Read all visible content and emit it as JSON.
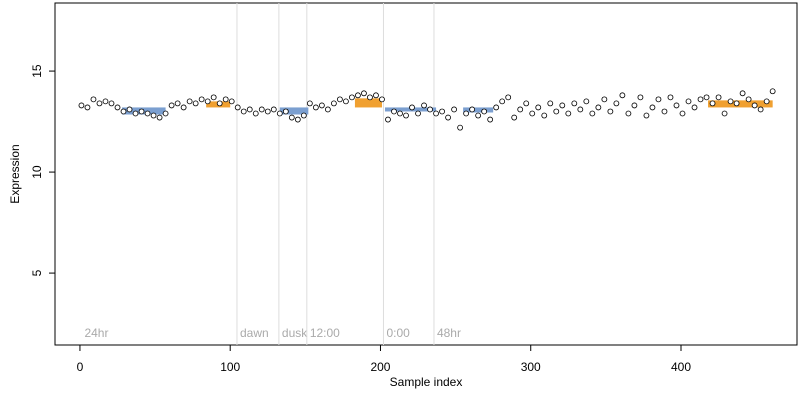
{
  "chart_data": {
    "type": "scatter",
    "x_label": "Sample index",
    "y_label": "Expression",
    "xlim": [
      -16.6,
      477.2
    ],
    "ylim": [
      1.44,
      18.37
    ],
    "xticks": [
      0,
      100,
      200,
      300,
      400
    ],
    "yticks": [
      5,
      10,
      15
    ],
    "series": [
      {
        "color": "#ffffff",
        "x": [
          1,
          5,
          9,
          13,
          17,
          21,
          25,
          29,
          33,
          37,
          41,
          45,
          49,
          53,
          57,
          61,
          65,
          69,
          73,
          77,
          81,
          85,
          89,
          93,
          97,
          101,
          105,
          109,
          113,
          117,
          121,
          125,
          129,
          133,
          137,
          141,
          145,
          149,
          153,
          157,
          161,
          165,
          169,
          173,
          177,
          181,
          185,
          189,
          193,
          197,
          201,
          205,
          209,
          213,
          217,
          221,
          225,
          229,
          233,
          237,
          241,
          245,
          249,
          253,
          257,
          261,
          265,
          269,
          273,
          277,
          281,
          285,
          289,
          293,
          297,
          301,
          305,
          309,
          313,
          317,
          321,
          325,
          329,
          333,
          337,
          341,
          345,
          349,
          353,
          357,
          361,
          365,
          369,
          373,
          377,
          381,
          385,
          389,
          393,
          397,
          401,
          405,
          409,
          413,
          417,
          421,
          425,
          429,
          433,
          437,
          441,
          445,
          449,
          453,
          457,
          461
        ],
        "values": [
          13.3,
          13.2,
          13.6,
          13.4,
          13.5,
          13.4,
          13.2,
          13.0,
          13.1,
          12.9,
          13.0,
          12.9,
          12.8,
          12.7,
          12.9,
          13.3,
          13.4,
          13.2,
          13.5,
          13.4,
          13.6,
          13.5,
          13.7,
          13.4,
          13.6,
          13.5,
          13.2,
          13.0,
          13.1,
          12.9,
          13.1,
          13.0,
          13.1,
          12.9,
          13.0,
          12.7,
          12.6,
          12.8,
          13.4,
          13.2,
          13.3,
          13.1,
          13.4,
          13.6,
          13.5,
          13.7,
          13.8,
          13.9,
          13.7,
          13.8,
          13.6,
          12.6,
          13.0,
          12.9,
          12.8,
          13.2,
          12.9,
          13.3,
          13.1,
          12.9,
          13.0,
          12.7,
          13.1,
          12.2,
          12.9,
          13.1,
          12.8,
          13.0,
          12.6,
          13.2,
          13.5,
          13.7,
          12.7,
          13.1,
          13.4,
          12.9,
          13.2,
          12.8,
          13.4,
          13.0,
          13.3,
          12.9,
          13.4,
          13.1,
          13.5,
          12.9,
          13.2,
          13.6,
          13.0,
          13.4,
          13.8,
          12.9,
          13.3,
          13.7,
          12.8,
          13.2,
          13.6,
          13.0,
          13.7,
          13.3,
          12.9,
          13.5,
          13.2,
          13.6,
          13.7,
          13.4,
          13.7,
          12.9,
          13.5,
          13.4,
          13.9,
          13.6,
          13.3,
          13.1,
          13.5,
          14.0
        ]
      }
    ],
    "highlights": [
      {
        "x0": 28,
        "x1": 57,
        "y0": 12.85,
        "y1": 13.2,
        "color": "#7b9fd0"
      },
      {
        "x0": 84,
        "x1": 100,
        "y0": 13.2,
        "y1": 13.5,
        "color": "#f0a030"
      },
      {
        "x0": 133,
        "x1": 152,
        "y0": 12.85,
        "y1": 13.2,
        "color": "#7b9fd0"
      },
      {
        "x0": 183,
        "x1": 201,
        "y0": 13.2,
        "y1": 13.65,
        "color": "#f0a030"
      },
      {
        "x0": 203,
        "x1": 237,
        "y0": 13.0,
        "y1": 13.2,
        "color": "#7b9fd0"
      },
      {
        "x0": 255,
        "x1": 275,
        "y0": 12.95,
        "y1": 13.2,
        "color": "#7b9fd0"
      },
      {
        "x0": 418,
        "x1": 461,
        "y0": 13.2,
        "y1": 13.55,
        "color": "#f0a030"
      }
    ],
    "vlines": [
      {
        "x": 1,
        "label": "24hr"
      },
      {
        "x": 104.5,
        "label": "dawn"
      },
      {
        "x": 132.4,
        "label": "dusk"
      },
      {
        "x": 151,
        "label": "12:00"
      },
      {
        "x": 202,
        "label": "0:00"
      },
      {
        "x": 235.6,
        "label": "48hr"
      }
    ]
  }
}
